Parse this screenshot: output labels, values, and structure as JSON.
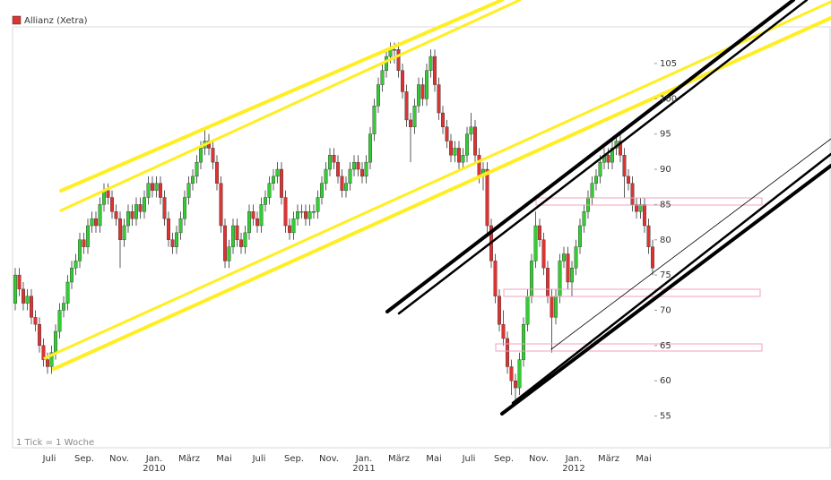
{
  "chart_data": {
    "type": "candlestick",
    "title": "Allianz (Xetra)",
    "note": "1 Tick = 1 Woche",
    "up_color": "#33cc33",
    "down_color": "#dd3333",
    "legend_color": "#dd3333",
    "ylim": [
      50.5,
      110.2
    ],
    "yticks": [
      55,
      60,
      65,
      70,
      75,
      80,
      85,
      90,
      95,
      100,
      105
    ],
    "month_labels": [
      "Juli",
      "Sep.",
      "Nov.",
      "Jan.",
      "März",
      "Mai",
      "Juli",
      "Sep.",
      "Nov.",
      "Jan.",
      "März",
      "Mai",
      "Juli",
      "Sep.",
      "Nov.",
      "Jan.",
      "März",
      "Mai"
    ],
    "year_labels": [
      "2010",
      "2011",
      "2012"
    ],
    "candles": [
      [
        71,
        76,
        70,
        75
      ],
      [
        75,
        76,
        72,
        73
      ],
      [
        73,
        74,
        70,
        71
      ],
      [
        71,
        73,
        70,
        72
      ],
      [
        72,
        73,
        68,
        69
      ],
      [
        69,
        70,
        67,
        68
      ],
      [
        68,
        69,
        64,
        65
      ],
      [
        65,
        66,
        62,
        63
      ],
      [
        63,
        64,
        61,
        62
      ],
      [
        62,
        65,
        61,
        64
      ],
      [
        64,
        68,
        63,
        67
      ],
      [
        67,
        71,
        66,
        70
      ],
      [
        70,
        72,
        69,
        71
      ],
      [
        71,
        75,
        70,
        74
      ],
      [
        74,
        77,
        73,
        76
      ],
      [
        76,
        78,
        75,
        77
      ],
      [
        77,
        81,
        76,
        80
      ],
      [
        80,
        81,
        78,
        79
      ],
      [
        79,
        83,
        78,
        82
      ],
      [
        82,
        84,
        81,
        83
      ],
      [
        83,
        84,
        81,
        82
      ],
      [
        82,
        86,
        81,
        85
      ],
      [
        85,
        88,
        84,
        87
      ],
      [
        87,
        88,
        85,
        86
      ],
      [
        86,
        87,
        83,
        84
      ],
      [
        84,
        85,
        82,
        83
      ],
      [
        83,
        84,
        76,
        80
      ],
      [
        80,
        83,
        79,
        82
      ],
      [
        82,
        85,
        81,
        84
      ],
      [
        84,
        85,
        82,
        83
      ],
      [
        83,
        86,
        82,
        85
      ],
      [
        85,
        86,
        83,
        84
      ],
      [
        84,
        87,
        83,
        86
      ],
      [
        86,
        89,
        85,
        88
      ],
      [
        88,
        89,
        86,
        87
      ],
      [
        87,
        89,
        86,
        88
      ],
      [
        88,
        89,
        85,
        86
      ],
      [
        86,
        87,
        82,
        83
      ],
      [
        83,
        84,
        79,
        80
      ],
      [
        80,
        81,
        78,
        79
      ],
      [
        79,
        82,
        78,
        81
      ],
      [
        81,
        84,
        80,
        83
      ],
      [
        83,
        87,
        82,
        86
      ],
      [
        86,
        89,
        85,
        88
      ],
      [
        88,
        90,
        87,
        89
      ],
      [
        89,
        92,
        88,
        91
      ],
      [
        91,
        94,
        90,
        93
      ],
      [
        93,
        96,
        92,
        94
      ],
      [
        94,
        95,
        92,
        93
      ],
      [
        93,
        94,
        90,
        91
      ],
      [
        91,
        92,
        87,
        88
      ],
      [
        88,
        89,
        81,
        82
      ],
      [
        82,
        83,
        76,
        77
      ],
      [
        77,
        80,
        76,
        79
      ],
      [
        79,
        83,
        78,
        82
      ],
      [
        82,
        83,
        79,
        80
      ],
      [
        80,
        81,
        78,
        79
      ],
      [
        79,
        82,
        78,
        81
      ],
      [
        81,
        85,
        80,
        84
      ],
      [
        84,
        85,
        82,
        83
      ],
      [
        83,
        84,
        81,
        82
      ],
      [
        82,
        86,
        81,
        85
      ],
      [
        85,
        87,
        84,
        86
      ],
      [
        86,
        89,
        85,
        88
      ],
      [
        88,
        90,
        87,
        89
      ],
      [
        89,
        91,
        88,
        90
      ],
      [
        90,
        91,
        85,
        86
      ],
      [
        86,
        87,
        81,
        82
      ],
      [
        82,
        83,
        80,
        81
      ],
      [
        81,
        84,
        80,
        83
      ],
      [
        83,
        85,
        82,
        84
      ],
      [
        84,
        85,
        83,
        84
      ],
      [
        84,
        85,
        82,
        83
      ],
      [
        83,
        85,
        82,
        84
      ],
      [
        84,
        85,
        83,
        84
      ],
      [
        84,
        87,
        83,
        86
      ],
      [
        86,
        89,
        85,
        88
      ],
      [
        88,
        91,
        87,
        90
      ],
      [
        90,
        93,
        89,
        92
      ],
      [
        92,
        93,
        90,
        91
      ],
      [
        91,
        92,
        88,
        89
      ],
      [
        89,
        90,
        86,
        87
      ],
      [
        87,
        89,
        86,
        88
      ],
      [
        88,
        91,
        87,
        90
      ],
      [
        90,
        92,
        89,
        91
      ],
      [
        91,
        92,
        89,
        90
      ],
      [
        90,
        91,
        88,
        89
      ],
      [
        89,
        92,
        88,
        91
      ],
      [
        91,
        96,
        90,
        95
      ],
      [
        95,
        100,
        94,
        99
      ],
      [
        99,
        103,
        98,
        102
      ],
      [
        102,
        105,
        101,
        104
      ],
      [
        104,
        107,
        103,
        106
      ],
      [
        106,
        108,
        105,
        107
      ],
      [
        107,
        108,
        105,
        107
      ],
      [
        107,
        108,
        103,
        104
      ],
      [
        104,
        105,
        100,
        101
      ],
      [
        101,
        102,
        96,
        97
      ],
      [
        97,
        98,
        91,
        96
      ],
      [
        96,
        100,
        95,
        99
      ],
      [
        99,
        103,
        98,
        102
      ],
      [
        102,
        103,
        99,
        100
      ],
      [
        100,
        105,
        99,
        104
      ],
      [
        104,
        107,
        103,
        106
      ],
      [
        106,
        107,
        101,
        102
      ],
      [
        102,
        103,
        97,
        98
      ],
      [
        98,
        99,
        95,
        96
      ],
      [
        96,
        97,
        93,
        94
      ],
      [
        94,
        95,
        91,
        92
      ],
      [
        92,
        94,
        91,
        93
      ],
      [
        93,
        94,
        90,
        91
      ],
      [
        91,
        93,
        90,
        92
      ],
      [
        92,
        96,
        91,
        95
      ],
      [
        95,
        98,
        94,
        96
      ],
      [
        96,
        97,
        91,
        92
      ],
      [
        92,
        93,
        88,
        89
      ],
      [
        89,
        91,
        87,
        90
      ],
      [
        90,
        91,
        81,
        82
      ],
      [
        82,
        83,
        76,
        77
      ],
      [
        77,
        78,
        71,
        72
      ],
      [
        72,
        73,
        67,
        68
      ],
      [
        68,
        70,
        65,
        66
      ],
      [
        66,
        67,
        61,
        62
      ],
      [
        62,
        63,
        58,
        60
      ],
      [
        60,
        61,
        57,
        59
      ],
      [
        59,
        64,
        58,
        63
      ],
      [
        63,
        69,
        62,
        68
      ],
      [
        68,
        73,
        67,
        72
      ],
      [
        72,
        78,
        71,
        77
      ],
      [
        77,
        84,
        76,
        82
      ],
      [
        82,
        83,
        79,
        80
      ],
      [
        80,
        81,
        75,
        76
      ],
      [
        76,
        77,
        71,
        72
      ],
      [
        72,
        73,
        64,
        69
      ],
      [
        69,
        73,
        68,
        72
      ],
      [
        72,
        78,
        71,
        77
      ],
      [
        77,
        79,
        76,
        78
      ],
      [
        78,
        79,
        73,
        74
      ],
      [
        74,
        77,
        72,
        76
      ],
      [
        76,
        80,
        75,
        79
      ],
      [
        79,
        83,
        78,
        82
      ],
      [
        82,
        85,
        81,
        84
      ],
      [
        84,
        87,
        83,
        86
      ],
      [
        86,
        89,
        85,
        88
      ],
      [
        88,
        90,
        87,
        89
      ],
      [
        89,
        92,
        88,
        91
      ],
      [
        91,
        93,
        90,
        92
      ],
      [
        92,
        93,
        90,
        91
      ],
      [
        91,
        94,
        90,
        93
      ],
      [
        93,
        95,
        92,
        94
      ],
      [
        94,
        95,
        91,
        92
      ],
      [
        92,
        93,
        86,
        89
      ],
      [
        89,
        90,
        87,
        88
      ],
      [
        88,
        89,
        84,
        85
      ],
      [
        85,
        86,
        83,
        84
      ],
      [
        84,
        86,
        83,
        85
      ],
      [
        85,
        86,
        81,
        82
      ],
      [
        82,
        83,
        78,
        79
      ],
      [
        79,
        80,
        75,
        76
      ]
    ]
  }
}
